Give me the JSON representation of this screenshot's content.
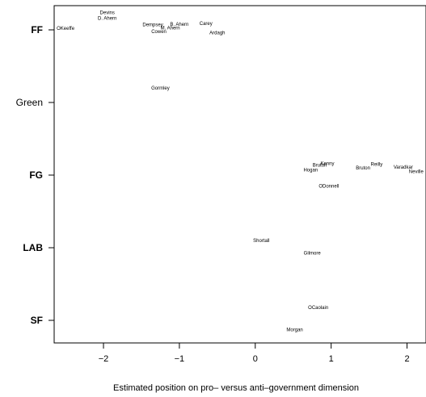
{
  "chart_data": {
    "type": "scatter",
    "title": "",
    "xlabel": "Estimated position on pro– versus anti–government dimension",
    "ylabel": "",
    "xlim": [
      -2.65,
      2.25
    ],
    "x_ticks": [
      {
        "value": -2,
        "label": "−2"
      },
      {
        "value": -1,
        "label": "−1"
      },
      {
        "value": 0,
        "label": "0"
      },
      {
        "value": 1,
        "label": "1"
      },
      {
        "value": 2,
        "label": "2"
      }
    ],
    "categories": [
      {
        "key": "FF",
        "label": "FF",
        "bold": true
      },
      {
        "key": "Green",
        "label": "Green",
        "bold": false
      },
      {
        "key": "FG",
        "label": "FG",
        "bold": true
      },
      {
        "key": "LAB",
        "label": "LAB",
        "bold": true
      },
      {
        "key": "SF",
        "label": "SF",
        "bold": true
      }
    ],
    "points": [
      {
        "name": "OKeeffe",
        "x": -2.5,
        "party": "FF",
        "jitter": 0.02
      },
      {
        "name": "Devins",
        "x": -1.95,
        "party": "FF",
        "jitter": 0.24
      },
      {
        "name": "D. Ahern",
        "x": -1.95,
        "party": "FF",
        "jitter": 0.16
      },
      {
        "name": "Dempsey",
        "x": -1.35,
        "party": "FF",
        "jitter": 0.07
      },
      {
        "name": "M. Ahern",
        "x": -1.12,
        "party": "FF",
        "jitter": 0.03
      },
      {
        "name": "Cowen",
        "x": -1.27,
        "party": "FF",
        "jitter": -0.02
      },
      {
        "name": "B. Ahern",
        "x": -1.0,
        "party": "FF",
        "jitter": 0.08
      },
      {
        "name": "Carey",
        "x": -0.65,
        "party": "FF",
        "jitter": 0.09
      },
      {
        "name": "Ardagh",
        "x": -0.5,
        "party": "FF",
        "jitter": -0.04
      },
      {
        "name": "Gormley",
        "x": -1.25,
        "party": "Green",
        "jitter": 0.2
      },
      {
        "name": "Hogan",
        "x": 0.73,
        "party": "FG",
        "jitter": 0.07
      },
      {
        "name": "Bruton",
        "x": 0.85,
        "party": "FG",
        "jitter": 0.14
      },
      {
        "name": "Kenny",
        "x": 0.95,
        "party": "FG",
        "jitter": 0.16
      },
      {
        "name": "Bruton",
        "x": 1.42,
        "party": "FG",
        "jitter": 0.1
      },
      {
        "name": "Reilly",
        "x": 1.6,
        "party": "FG",
        "jitter": 0.15
      },
      {
        "name": "Varadkar",
        "x": 1.95,
        "party": "FG",
        "jitter": 0.11
      },
      {
        "name": "Neville",
        "x": 2.12,
        "party": "FG",
        "jitter": 0.05
      },
      {
        "name": "ODonnell",
        "x": 0.97,
        "party": "FG",
        "jitter": -0.15
      },
      {
        "name": "Shortall",
        "x": 0.08,
        "party": "LAB",
        "jitter": 0.1
      },
      {
        "name": "Gilmore",
        "x": 0.75,
        "party": "LAB",
        "jitter": -0.07
      },
      {
        "name": "OCaolain",
        "x": 0.83,
        "party": "SF",
        "jitter": 0.18
      },
      {
        "name": "Morgan",
        "x": 0.52,
        "party": "SF",
        "jitter": -0.13
      }
    ],
    "grid": false,
    "legend": "none"
  }
}
